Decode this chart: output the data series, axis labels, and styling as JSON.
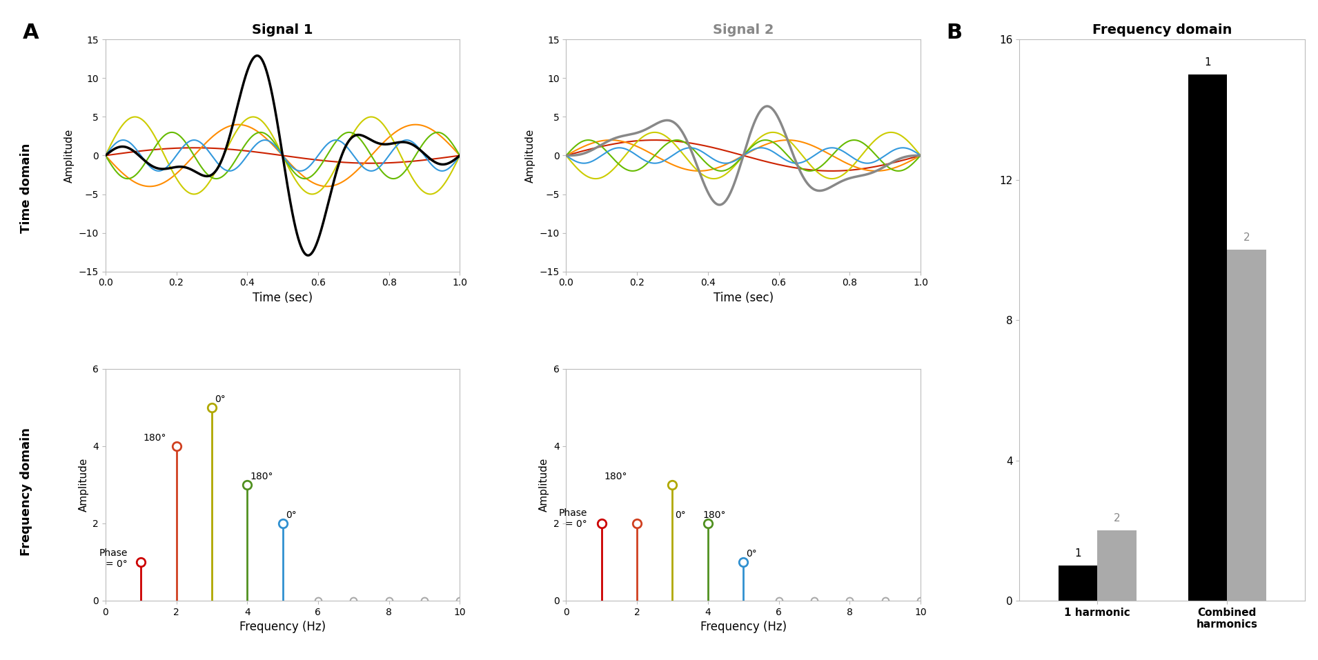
{
  "signal1_title": "Signal 1",
  "signal2_title": "Signal 2",
  "xlabel_time": "Time (sec)",
  "xlabel_freq": "Frequency (Hz)",
  "ylabel_amplitude": "Amplitude",
  "bar_title": "Frequency domain",
  "bar_categories": [
    "1 harmonic",
    "Combined\nharmonics"
  ],
  "bar_values_black": [
    1,
    15
  ],
  "bar_values_gray": [
    2,
    10
  ],
  "bar_ylim": [
    0,
    16
  ],
  "bar_yticks": [
    0,
    4,
    8,
    12,
    16
  ],
  "signal1_harmonics": {
    "freqs": [
      1,
      2,
      3,
      4,
      5
    ],
    "amplitudes": [
      1,
      4,
      5,
      3,
      2
    ],
    "phases_deg": [
      0,
      180,
      0,
      180,
      0
    ],
    "time_colors": [
      "#cc2200",
      "#ff8c00",
      "#cccc00",
      "#66bb00",
      "#3399dd"
    ],
    "stem_colors": [
      "#cc0000",
      "#d04020",
      "#b0a800",
      "#509020",
      "#3090d0"
    ]
  },
  "signal2_harmonics": {
    "freqs": [
      1,
      2,
      3,
      4,
      5
    ],
    "amplitudes": [
      2,
      2,
      3,
      2,
      1
    ],
    "phases_deg": [
      0,
      0,
      180,
      0,
      180
    ],
    "time_colors": [
      "#cc2200",
      "#ff8c00",
      "#cccc00",
      "#66bb00",
      "#3399dd"
    ],
    "stem_colors": [
      "#cc0000",
      "#d04020",
      "#b0a800",
      "#509020",
      "#3090d0"
    ]
  },
  "zero_stem_color": "#aaaaaa",
  "time_xlim": [
    0,
    1
  ],
  "time_ylim": [
    -15,
    15
  ],
  "time_yticks": [
    -15,
    -10,
    -5,
    0,
    5,
    10,
    15
  ],
  "time_xticks": [
    0,
    0.2,
    0.4,
    0.6,
    0.8,
    1.0
  ],
  "freq_xlim": [
    0,
    10
  ],
  "freq_ylim": [
    0,
    6
  ],
  "freq_xticks": [
    0,
    2,
    4,
    6,
    8,
    10
  ],
  "freq_yticks": [
    0,
    2,
    4,
    6
  ],
  "zero_freqs": [
    6,
    7,
    8,
    9,
    10
  ],
  "label_A": "A",
  "label_B": "B",
  "row_label_time": "Time domain",
  "row_label_freq": "Frequency domain"
}
